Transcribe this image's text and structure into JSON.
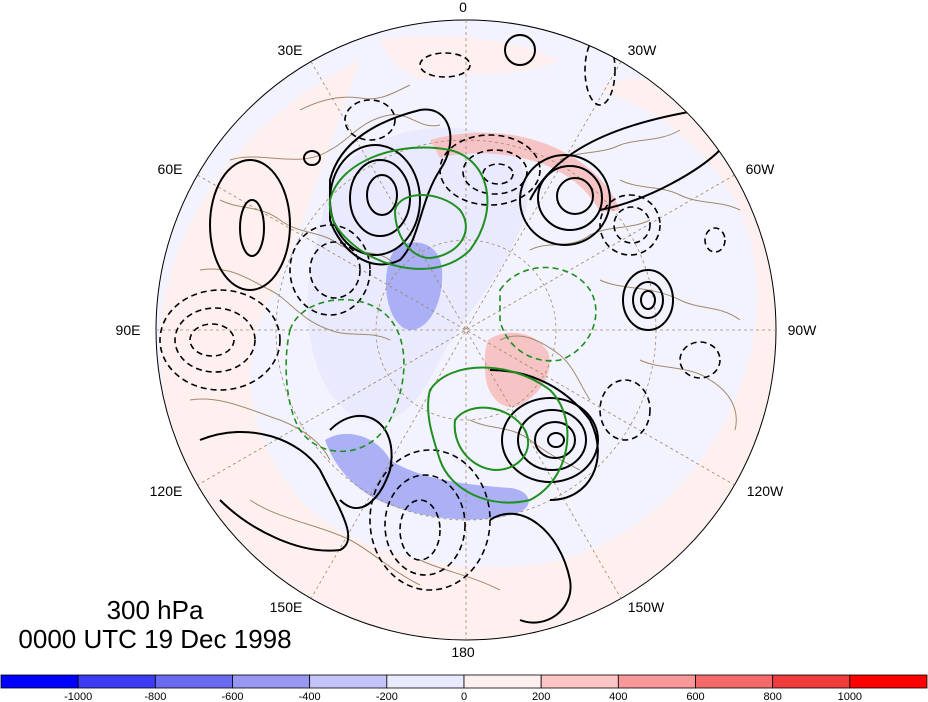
{
  "figure": {
    "level": "300 hPa",
    "time": "0000 UTC 19 Dec 1998"
  },
  "longitude_labels": [
    {
      "id": "lon-0",
      "text": "0"
    },
    {
      "id": "lon-30e",
      "text": "30E"
    },
    {
      "id": "lon-30w",
      "text": "30W"
    },
    {
      "id": "lon-60e",
      "text": "60E"
    },
    {
      "id": "lon-60w",
      "text": "60W"
    },
    {
      "id": "lon-90e",
      "text": "90E"
    },
    {
      "id": "lon-90w",
      "text": "90W"
    },
    {
      "id": "lon-120e",
      "text": "120E"
    },
    {
      "id": "lon-120w",
      "text": "120W"
    },
    {
      "id": "lon-150e",
      "text": "150E"
    },
    {
      "id": "lon-150w",
      "text": "150W"
    },
    {
      "id": "lon-180",
      "text": "180"
    }
  ],
  "colorbar": {
    "colors": [
      "#0000ff",
      "#3c3cf5",
      "#6a6af0",
      "#9898f2",
      "#c4c4f8",
      "#eaeaff",
      "#fff0f0",
      "#fcc4c4",
      "#f89898",
      "#f46a6a",
      "#f03c3c",
      "#ff0000"
    ],
    "labels": [
      "-1000",
      "-800",
      "-600",
      "-400",
      "-200",
      "0",
      "200",
      "400",
      "600",
      "800",
      "1000"
    ]
  },
  "colors": {
    "solid_contour": "#000000",
    "dashed_contour": "#000000",
    "green_contour": "#1f8f1f",
    "coastline": "#a08a6a",
    "graticule": "#a08a6a"
  }
}
